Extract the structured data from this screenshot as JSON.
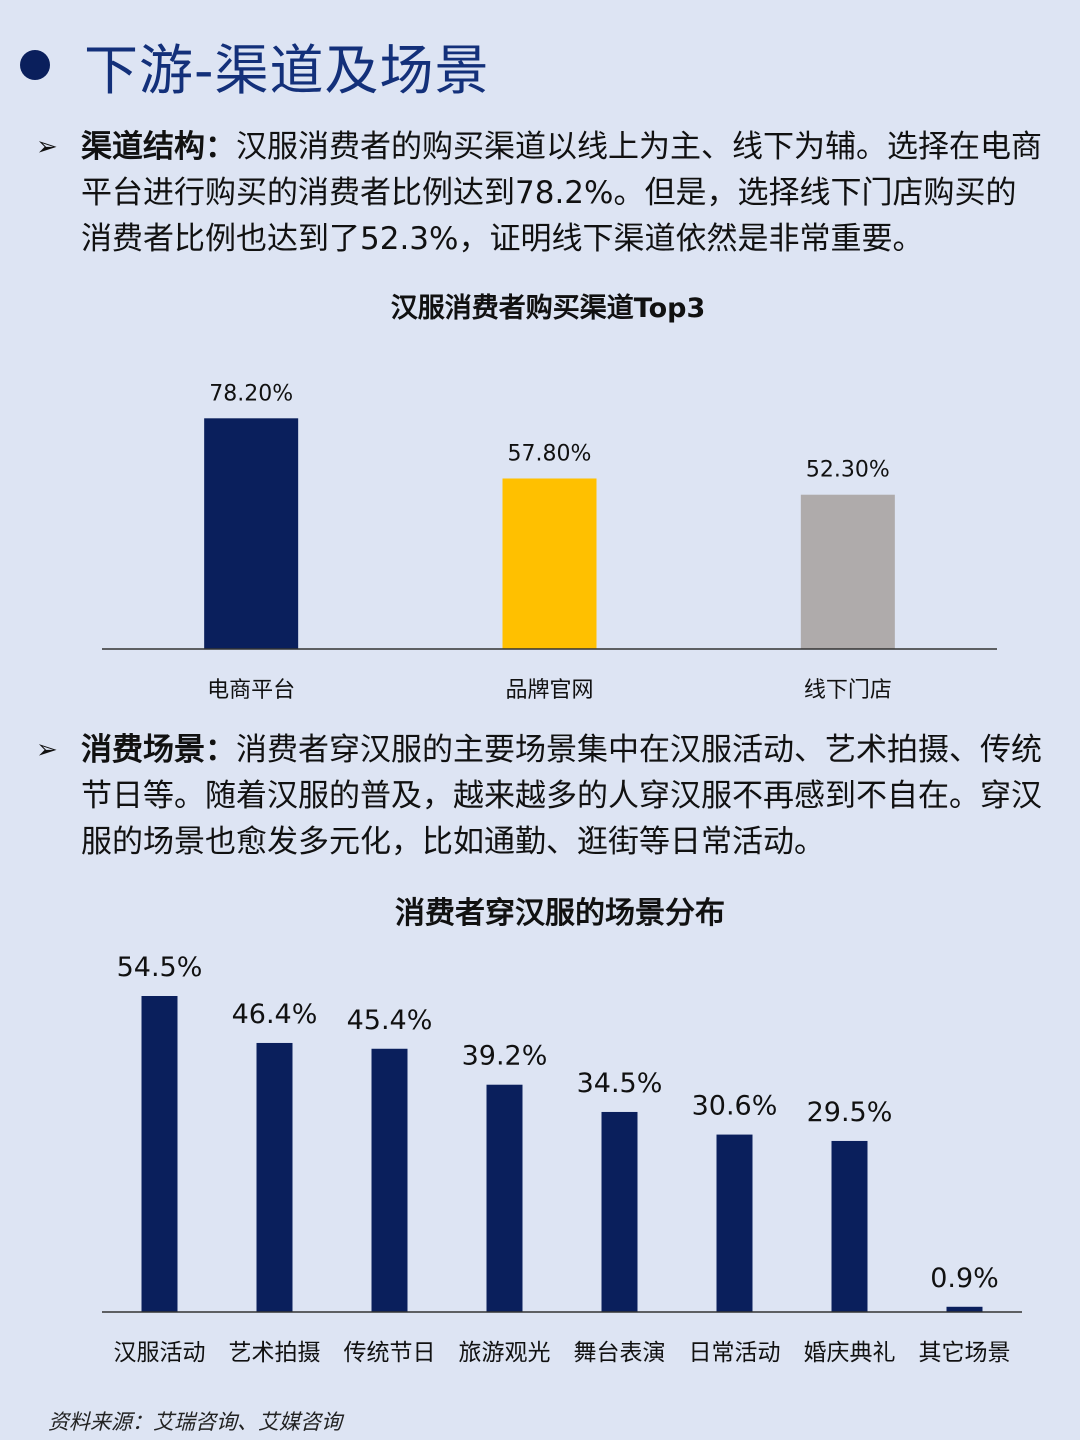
{
  "page_title": "下游-渠道及场景",
  "section1": {
    "arrow": "➢",
    "lead": "渠道结构：",
    "text": "汉服消费者的购买渠道以线上为主、线下为辅。选择在电商平台进行购买的消费者比例达到78.2%。但是，选择线下门店购买的消费者比例也达到了52.3%，证明线下渠道依然是非常重要。"
  },
  "section2": {
    "arrow": "➢",
    "lead": "消费场景：",
    "text": "消费者穿汉服的主要场景集中在汉服活动、艺术拍摄、传统节日等。随着汉服的普及，越来越多的人穿汉服不再感到不自在。穿汉服的场景也愈发多元化，比如通勤、逛街等日常活动。"
  },
  "source": "资料来源：艾瑞咨询、艾媒咨询",
  "chart_data": [
    {
      "type": "bar",
      "title": "汉服消费者购买渠道Top3",
      "categories": [
        "电商平台",
        "品牌官网",
        "线下门店"
      ],
      "values": [
        78.2,
        57.8,
        52.3
      ],
      "labels": [
        "78.20%",
        "57.80%",
        "52.30%"
      ],
      "colors": [
        "#0a1f5c",
        "#ffc000",
        "#afabab"
      ],
      "ylim": [
        0,
        100
      ],
      "grid": false,
      "legend": "none"
    },
    {
      "type": "bar",
      "title": "消费者穿汉服的场景分布",
      "categories": [
        "汉服活动",
        "艺术拍摄",
        "传统节日",
        "旅游观光",
        "舞台表演",
        "日常活动",
        "婚庆典礼",
        "其它场景"
      ],
      "values": [
        54.5,
        46.4,
        45.4,
        39.2,
        34.5,
        30.6,
        29.5,
        0.9
      ],
      "labels": [
        "54.5%",
        "46.4%",
        "45.4%",
        "39.2%",
        "34.5%",
        "30.6%",
        "29.5%",
        "0.9%"
      ],
      "colors": [
        "#0a1f5c"
      ],
      "ylim": [
        0,
        54.5
      ],
      "grid": false,
      "legend": "none"
    }
  ]
}
